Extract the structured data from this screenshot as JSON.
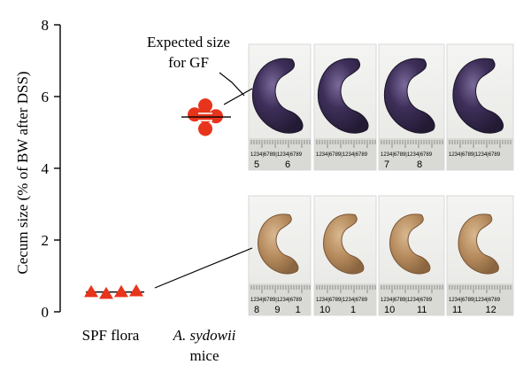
{
  "chart_data": {
    "type": "scatter",
    "ylabel": "Cecum size (% of BW after DSS)",
    "ylim": [
      0,
      8
    ],
    "yticks": [
      0,
      2,
      4,
      6,
      8
    ],
    "categories": [
      {
        "line1": "SPF flora",
        "line2": ""
      },
      {
        "line1": "A. sydowii",
        "line2": "mice"
      }
    ],
    "groups": [
      {
        "category": 0,
        "marker": "triangle",
        "color": "#e8341c",
        "values": [
          0.55,
          0.5,
          0.55,
          0.57
        ],
        "mean": 0.55
      },
      {
        "category": 1,
        "marker": "circle",
        "color": "#e8341c",
        "values": [
          5.75,
          5.5,
          5.45,
          5.45,
          5.1
        ],
        "mean": 5.43,
        "sem": 0.1
      }
    ],
    "annotation": {
      "line1": "Expected size",
      "line2": "for GF"
    }
  },
  "photos": {
    "top_row": [
      {
        "subject": "enlarged-cecum-dark",
        "ruler_numbers": [
          "5",
          "6"
        ]
      },
      {
        "subject": "enlarged-cecum-dark",
        "ruler_numbers": [
          "",
          ""
        ]
      },
      {
        "subject": "enlarged-cecum-dark",
        "ruler_numbers": [
          "7",
          "8"
        ]
      },
      {
        "subject": "enlarged-cecum-dark",
        "ruler_numbers": [
          "",
          ""
        ]
      }
    ],
    "bottom_row": [
      {
        "subject": "normal-cecum-tan",
        "ruler_numbers": [
          "8",
          "9",
          "1"
        ]
      },
      {
        "subject": "normal-cecum-tan",
        "ruler_numbers": [
          "10",
          "1"
        ]
      },
      {
        "subject": "normal-cecum-tan",
        "ruler_numbers": [
          "10",
          "11"
        ]
      },
      {
        "subject": "normal-cecum-tan",
        "ruler_numbers": [
          "11",
          "12"
        ]
      }
    ],
    "ruler_text": "1234|6789|1234|6789"
  }
}
